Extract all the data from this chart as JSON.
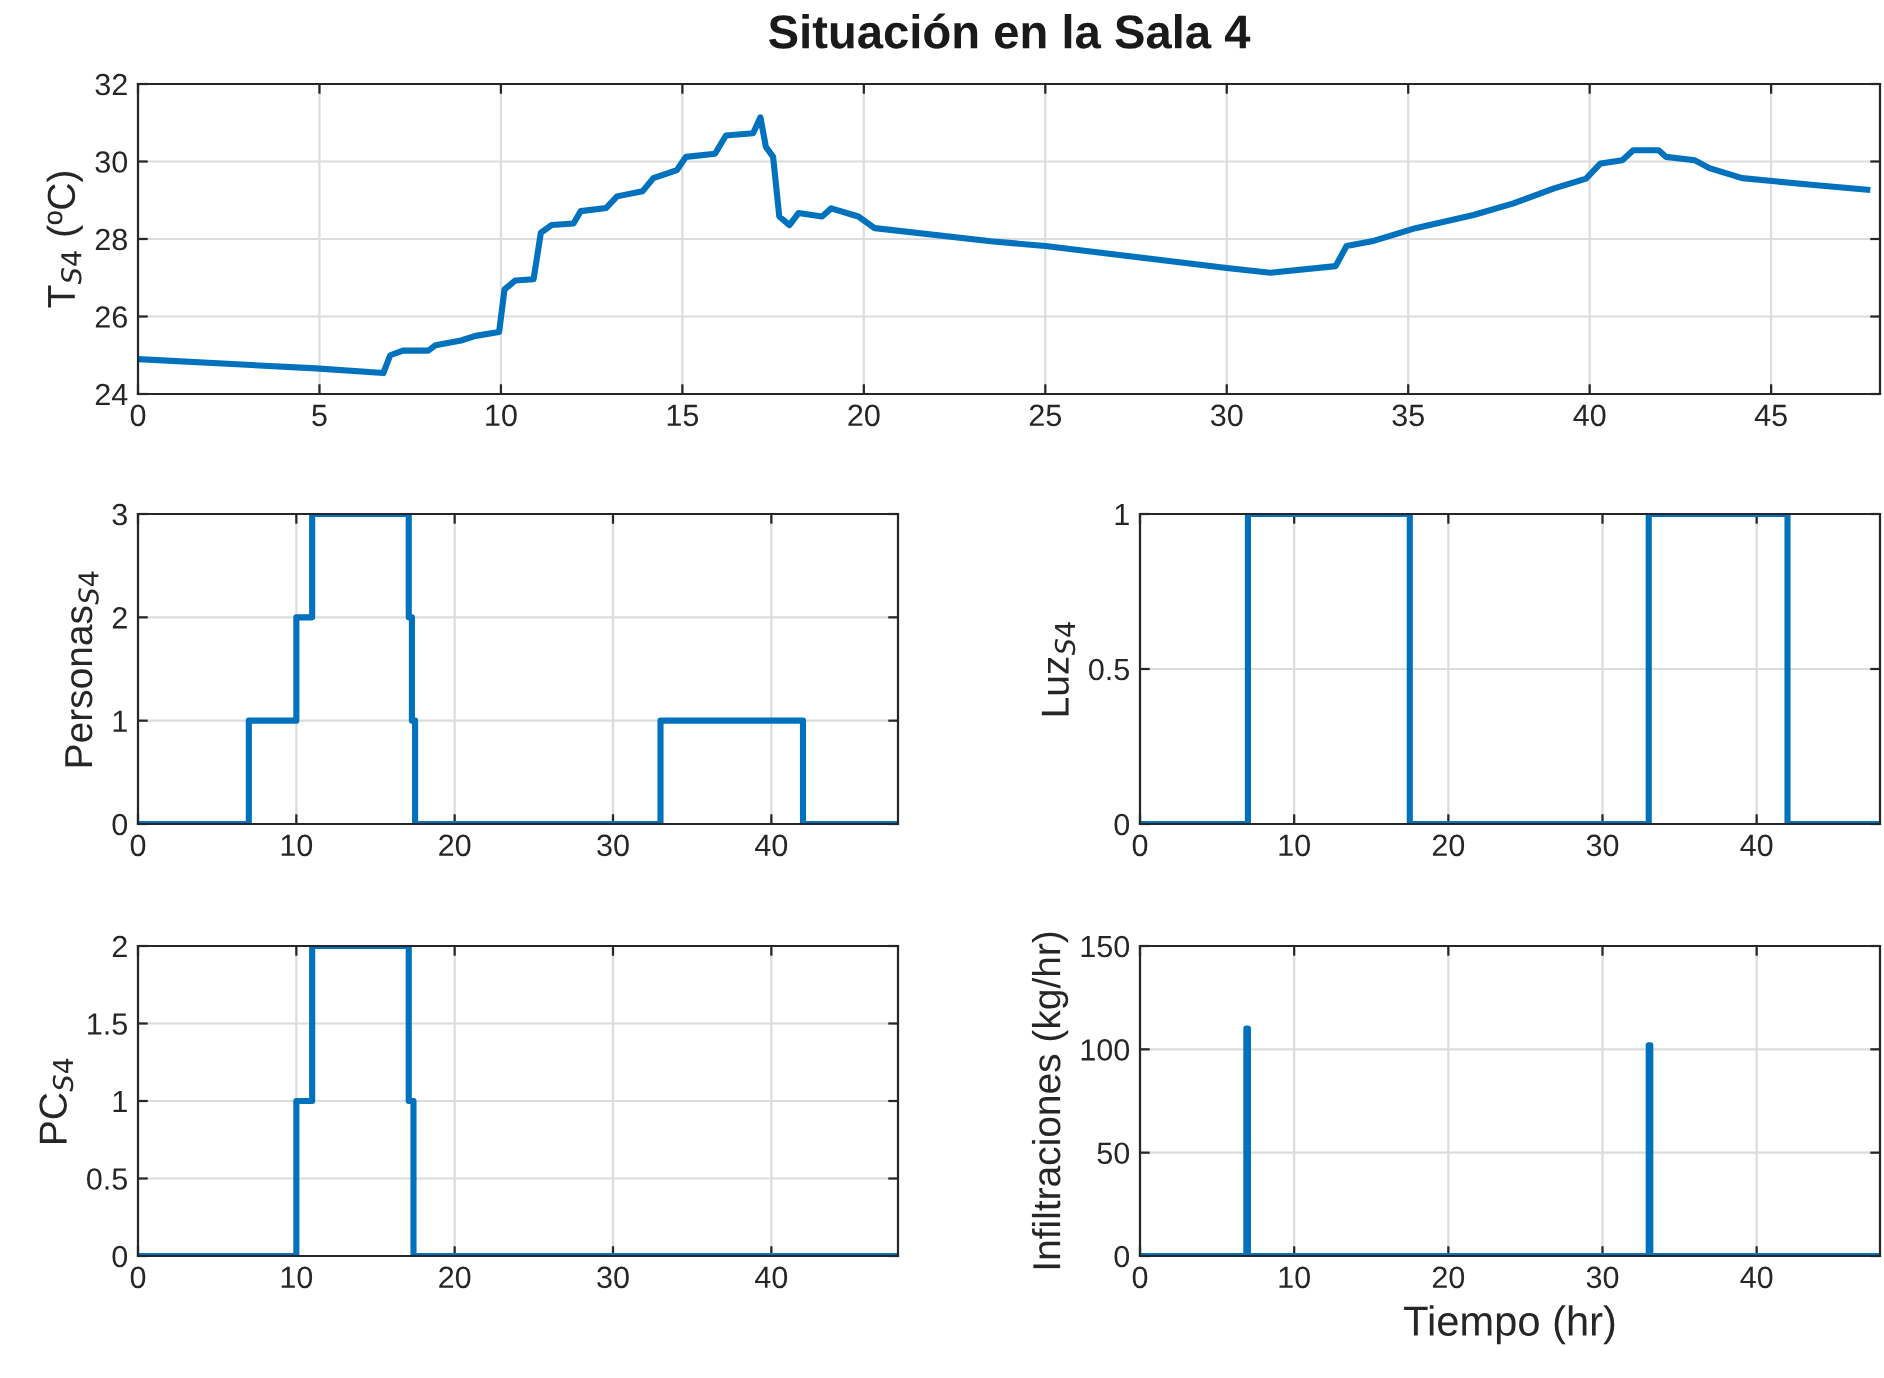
{
  "chart_data": [
    {
      "type": "line",
      "title": "Situación en la Sala 4",
      "ylabel": "T$_{S4}$ (ºC)",
      "xlim": [
        0,
        48
      ],
      "ylim": [
        24,
        32
      ],
      "xticks": [
        0,
        5,
        10,
        15,
        20,
        25,
        30,
        35,
        40,
        45
      ],
      "yticks": [
        24,
        26,
        28,
        30,
        32
      ],
      "grid": true,
      "series": [
        {
          "color": "#0072bd",
          "x": [
            0,
            4.9,
            6.76,
            6.95,
            7.3,
            8.0,
            8.2,
            8.9,
            9.3,
            9.95,
            10.1,
            10.4,
            10.9,
            11.1,
            11.4,
            12.0,
            12.2,
            12.9,
            13.2,
            13.9,
            14.2,
            14.85,
            15.1,
            15.9,
            16.2,
            16.95,
            17.15,
            17.3,
            17.5,
            17.67,
            17.95,
            18.2,
            18.85,
            19.1,
            19.85,
            20.3,
            23.5,
            25,
            30,
            31.2,
            33.0,
            33.3,
            34.0,
            35.2,
            36.8,
            37.9,
            39.0,
            39.9,
            40.3,
            40.9,
            41.2,
            41.9,
            42.1,
            42.9,
            43.3,
            44.2,
            46.1,
            47.65
          ],
          "values": [
            24.9,
            24.66,
            24.54,
            25.0,
            25.12,
            25.12,
            25.26,
            25.38,
            25.5,
            25.6,
            26.7,
            26.93,
            26.96,
            28.16,
            28.36,
            28.4,
            28.72,
            28.8,
            29.1,
            29.23,
            29.57,
            29.78,
            30.12,
            30.2,
            30.67,
            30.73,
            31.14,
            30.38,
            30.12,
            28.58,
            28.36,
            28.67,
            28.58,
            28.79,
            28.58,
            28.28,
            27.94,
            27.82,
            27.25,
            27.13,
            27.3,
            27.82,
            27.94,
            28.28,
            28.62,
            28.92,
            29.3,
            29.56,
            29.95,
            30.03,
            30.29,
            30.29,
            30.12,
            30.03,
            29.83,
            29.57,
            29.4,
            29.27
          ]
        }
      ]
    },
    {
      "type": "step",
      "ylabel": "Personas$_{S4}$",
      "xlim": [
        0,
        48
      ],
      "ylim": [
        0,
        3
      ],
      "xticks": [
        0,
        10,
        20,
        30,
        40
      ],
      "yticks": [
        0,
        1,
        2,
        3
      ],
      "grid": true,
      "series": [
        {
          "color": "#0072bd",
          "x": [
            0,
            7,
            10,
            11,
            17.1,
            17.3,
            17.5,
            33,
            42,
            48
          ],
          "values": [
            0,
            1,
            2,
            3,
            2,
            1,
            0,
            1,
            0,
            0
          ]
        }
      ]
    },
    {
      "type": "step",
      "ylabel": "Luz$_{S4}$",
      "xlim": [
        0,
        48
      ],
      "ylim": [
        0,
        1
      ],
      "xticks": [
        0,
        10,
        20,
        30,
        40
      ],
      "yticks": [
        0,
        0.5,
        1
      ],
      "grid": true,
      "series": [
        {
          "color": "#0072bd",
          "x": [
            0,
            7,
            17.5,
            33,
            42,
            48
          ],
          "values": [
            0,
            1,
            0,
            1,
            0,
            0
          ]
        }
      ]
    },
    {
      "type": "step",
      "ylabel": "PC$_{S4}$",
      "xlim": [
        0,
        48
      ],
      "ylim": [
        0,
        2
      ],
      "xticks": [
        0,
        10,
        20,
        30,
        40
      ],
      "yticks": [
        0,
        0.5,
        1,
        1.5,
        2
      ],
      "grid": true,
      "series": [
        {
          "color": "#0072bd",
          "x": [
            0,
            10,
            11,
            17.1,
            17.4,
            48
          ],
          "values": [
            0,
            1,
            2,
            1,
            0,
            0
          ]
        }
      ]
    },
    {
      "type": "line",
      "xlabel": "Tiempo (hr)",
      "ylabel": "Infiltraciones (kg/hr)",
      "xlim": [
        0,
        48
      ],
      "ylim": [
        0,
        150
      ],
      "xticks": [
        0,
        10,
        20,
        30,
        40
      ],
      "yticks": [
        0,
        50,
        100,
        150
      ],
      "grid": true,
      "series": [
        {
          "color": "#0072bd",
          "x": [
            0,
            6.9,
            6.9,
            7.0,
            7.0,
            33.0,
            33.0,
            33.1,
            33.1,
            48
          ],
          "values": [
            0,
            0,
            110,
            110,
            0,
            0,
            102,
            102,
            0,
            0
          ]
        }
      ]
    }
  ]
}
